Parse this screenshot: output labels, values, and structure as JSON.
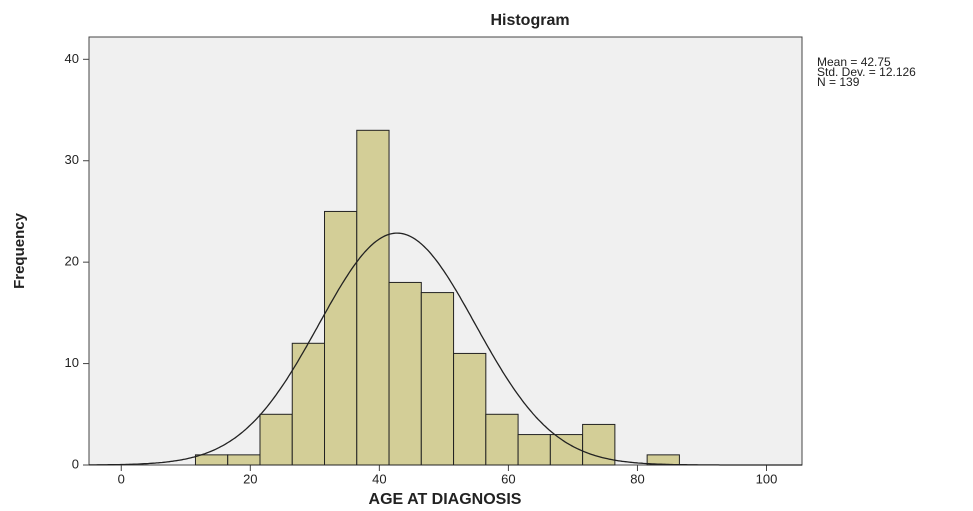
{
  "chart_data": {
    "type": "histogram",
    "title": "Histogram",
    "x_label": "AGE AT DIAGNOSIS",
    "y_label": "Frequency",
    "bins": [
      11.5,
      16.5,
      21.5,
      26.5,
      31.5,
      36.5,
      41.5,
      46.5,
      51.5,
      56.5,
      61.5,
      66.5,
      71.5,
      76.5,
      81.5,
      86.5
    ],
    "values": [
      1,
      1,
      5,
      12,
      25,
      33,
      18,
      17,
      11,
      5,
      3,
      3,
      4,
      0,
      1
    ],
    "color": "#d3ce97",
    "stats": [
      {
        "value": 42.75,
        "label": "Mean = 42.75"
      },
      {
        "value": 12.126,
        "label": "Std. Dev. = 12.126"
      },
      {
        "value": 139,
        "label": "N = 139"
      }
    ],
    "xlim": [
      -5,
      105.5
    ],
    "xticks": [
      0,
      20,
      40,
      60,
      80,
      100
    ],
    "ylim": [
      0,
      42.2
    ],
    "yticks": [
      0,
      10,
      20,
      30,
      40
    ]
  }
}
